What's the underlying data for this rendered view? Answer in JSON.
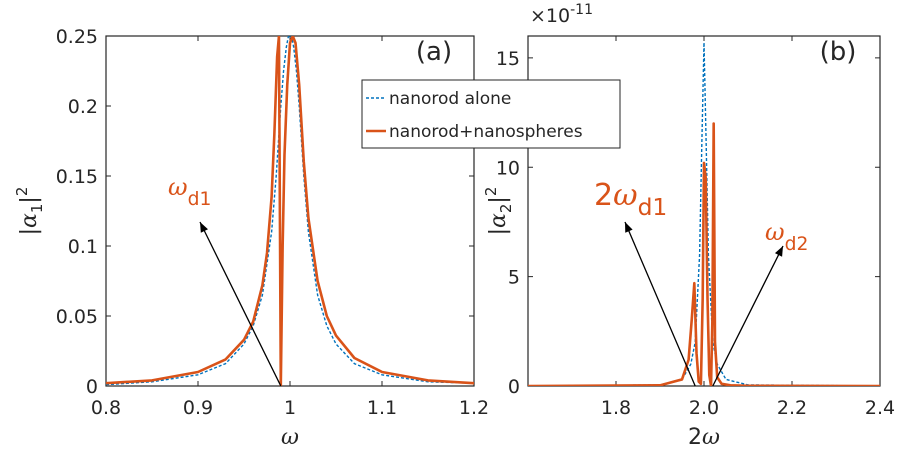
{
  "colors": {
    "alone": "#0072bd",
    "coupled": "#d95319",
    "axis": "#262626",
    "grid": "#ffffff"
  },
  "legend": {
    "items": [
      {
        "label": "nanorod alone",
        "style": "dashed",
        "color": "#0072bd"
      },
      {
        "label": "nanorod+nanospheres",
        "style": "solid",
        "color": "#d95319"
      }
    ]
  },
  "chart_data": [
    {
      "type": "line",
      "panel_label": "(a)",
      "xlabel": "ω",
      "ylabel_base": "|α",
      "ylabel_sub": "1",
      "ylabel_tail": "|",
      "ylabel_sup": "2",
      "xlim": [
        0.8,
        1.2
      ],
      "ylim": [
        0,
        0.25
      ],
      "xticks": [
        0.8,
        0.9,
        1.0,
        1.1,
        1.2
      ],
      "xtick_labels": [
        "0.8",
        "0.9",
        "1",
        "1.1",
        "1.2"
      ],
      "yticks": [
        0,
        0.05,
        0.1,
        0.15,
        0.2,
        0.25
      ],
      "ytick_labels": [
        "0",
        "0.05",
        "0.1",
        "0.15",
        "0.2",
        "0.25"
      ],
      "annotations": [
        {
          "main": "ω",
          "sub": "d1",
          "point_x": 0.99,
          "point_y": 0.0
        }
      ],
      "series": [
        {
          "style": "dashed",
          "color": "#0072bd",
          "x": [
            0.8,
            0.85,
            0.9,
            0.93,
            0.95,
            0.96,
            0.97,
            0.98,
            0.985,
            0.99,
            0.993,
            0.996,
            0.998,
            1.0,
            1.002,
            1.004,
            1.007,
            1.01,
            1.015,
            1.02,
            1.03,
            1.04,
            1.05,
            1.07,
            1.1,
            1.15,
            1.2
          ],
          "y": [
            0.001,
            0.003,
            0.008,
            0.016,
            0.03,
            0.043,
            0.065,
            0.11,
            0.15,
            0.2,
            0.225,
            0.242,
            0.249,
            0.251,
            0.249,
            0.242,
            0.225,
            0.2,
            0.15,
            0.11,
            0.065,
            0.043,
            0.03,
            0.016,
            0.008,
            0.003,
            0.002
          ]
        },
        {
          "style": "solid",
          "color": "#d95319",
          "x": [
            0.8,
            0.85,
            0.9,
            0.93,
            0.95,
            0.96,
            0.97,
            0.975,
            0.98,
            0.983,
            0.986,
            0.988,
            0.99,
            0.992,
            0.994,
            0.997,
            1.0,
            1.003,
            1.006,
            1.01,
            1.015,
            1.02,
            1.03,
            1.04,
            1.05,
            1.07,
            1.1,
            1.15,
            1.2
          ],
          "y": [
            0.002,
            0.004,
            0.01,
            0.019,
            0.033,
            0.046,
            0.072,
            0.095,
            0.135,
            0.18,
            0.235,
            0.25,
            0.0,
            0.1,
            0.165,
            0.215,
            0.245,
            0.25,
            0.245,
            0.215,
            0.16,
            0.12,
            0.075,
            0.05,
            0.036,
            0.02,
            0.01,
            0.004,
            0.002
          ]
        }
      ]
    },
    {
      "type": "line",
      "panel_label": "(b)",
      "xlabel": "2ω",
      "ylabel_base": "|α",
      "ylabel_sub": "2",
      "ylabel_tail": "|",
      "ylabel_sup": "2",
      "exponent_label": "×10",
      "exponent_power": "-11",
      "xlim": [
        1.6,
        2.4
      ],
      "ylim": [
        0,
        16
      ],
      "xticks": [
        1.8,
        2.0,
        2.2,
        2.4
      ],
      "xtick_labels": [
        "1.8",
        "2.0",
        "2.2",
        "2.4"
      ],
      "yticks": [
        0,
        5,
        10,
        15
      ],
      "ytick_labels": [
        "0",
        "5",
        "10",
        "15"
      ],
      "annotations": [
        {
          "main": "2ω",
          "sub": "d1",
          "point_x": 1.98,
          "point_y": 0.0
        },
        {
          "main": "ω",
          "sub": "d2",
          "point_x": 2.02,
          "point_y": 0.0
        }
      ],
      "series": [
        {
          "style": "dashed",
          "color": "#0072bd",
          "x": [
            1.6,
            1.9,
            1.95,
            1.97,
            1.98,
            1.99,
            1.995,
            2.0,
            2.005,
            2.01,
            2.02,
            2.03,
            2.05,
            2.1,
            2.4
          ],
          "y": [
            0,
            0.05,
            0.3,
            1.0,
            2.0,
            6.0,
            11.0,
            15.7,
            11.0,
            6.0,
            2.0,
            1.0,
            0.3,
            0.05,
            0
          ]
        },
        {
          "style": "solid",
          "color": "#d95319",
          "x": [
            1.6,
            1.9,
            1.95,
            1.965,
            1.972,
            1.978,
            1.983,
            1.988,
            1.993,
            1.997,
            2.0,
            2.004,
            2.008,
            2.012,
            2.016,
            2.019,
            2.022,
            2.025,
            2.03,
            2.04,
            2.06,
            2.1,
            2.4
          ],
          "y": [
            0,
            0.03,
            0.3,
            1.2,
            3.0,
            4.7,
            1.5,
            0.2,
            0.1,
            4.0,
            10.2,
            9.5,
            4.0,
            0.5,
            0.0,
            3.0,
            12.0,
            2.0,
            0.4,
            0.1,
            0.03,
            0.01,
            0
          ]
        }
      ]
    }
  ]
}
